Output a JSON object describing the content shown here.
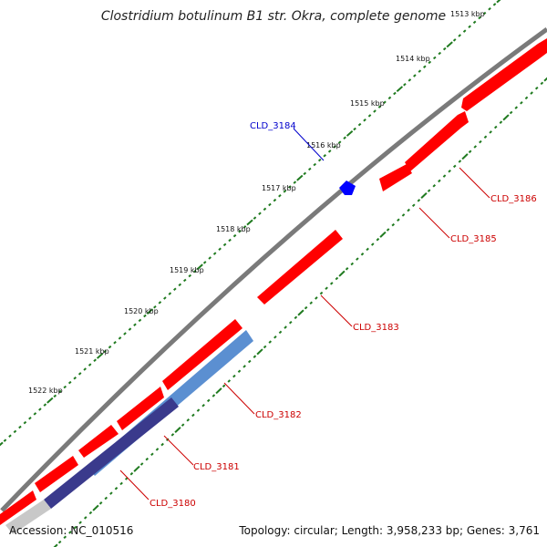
{
  "title": "Clostridium botulinum B1 str. Okra, complete genome",
  "colors": {
    "background": "#ffffff",
    "backbone": "#7a7a7a",
    "forward_cds": "#ff0000",
    "reverse_cds": "#ff0000",
    "highlight_gene": "#0000ff",
    "label_forward": "#cc0000",
    "label_highlight": "#0000cc",
    "tick": "#1f7a1f",
    "blue_track": "#5b8fd1",
    "navy_track": "#3a3a8c",
    "grey_track": "#c8c8c8"
  },
  "scale": {
    "unit": "kbp",
    "ticks": [
      {
        "label": "1513 kbp"
      },
      {
        "label": "1514 kbp"
      },
      {
        "label": "1515 kbp"
      },
      {
        "label": "1516 kbp"
      },
      {
        "label": "1517 kbp"
      },
      {
        "label": "1518 kbp"
      },
      {
        "label": "1519 kbp"
      },
      {
        "label": "1520 kbp"
      },
      {
        "label": "1521 kbp"
      },
      {
        "label": "1522 kbp"
      }
    ]
  },
  "gene_labels": {
    "cld_3184": "CLD_3184",
    "cld_3186": "CLD_3186",
    "cld_3185": "CLD_3185",
    "cld_3183": "CLD_3183",
    "cld_3182": "CLD_3182",
    "cld_3181": "CLD_3181",
    "cld_3180": "CLD_3180"
  },
  "footer": {
    "accession": "Accession: NC_010516",
    "summary": "Topology: circular; Length: 3,958,233 bp; Genes: 3,761"
  }
}
